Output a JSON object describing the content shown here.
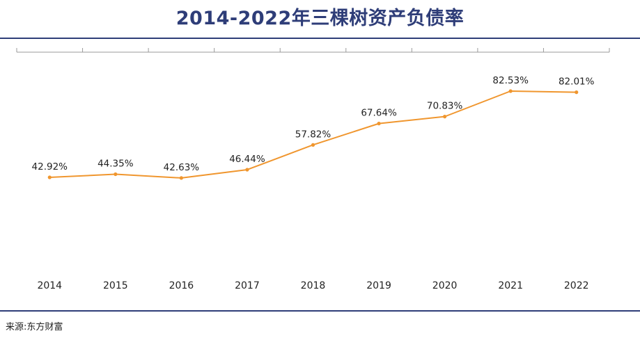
{
  "title": "2014-2022年三棵树资产负债率",
  "source": "来源:东方财富",
  "colors": {
    "line": "#f0962e",
    "title": "#2e3d78",
    "rule": "#2e3d78",
    "axis": "#9a9a9a"
  },
  "chart_data": {
    "type": "line",
    "title": "2014-2022年三棵树资产负债率",
    "categories": [
      "2014",
      "2015",
      "2016",
      "2017",
      "2018",
      "2019",
      "2020",
      "2021",
      "2022"
    ],
    "series": [
      {
        "name": "资产负债率",
        "values": [
          42.92,
          44.35,
          42.63,
          46.44,
          57.82,
          67.64,
          70.83,
          82.53,
          82.01
        ],
        "labels": [
          "42.92%",
          "44.35%",
          "42.63%",
          "46.44%",
          "57.82%",
          "67.64%",
          "70.83%",
          "82.53%",
          "82.01%"
        ]
      }
    ],
    "xlabel": "",
    "ylabel": "",
    "unit": "%",
    "ylim": [
      0,
      120
    ],
    "grid": false,
    "legend": "none"
  }
}
